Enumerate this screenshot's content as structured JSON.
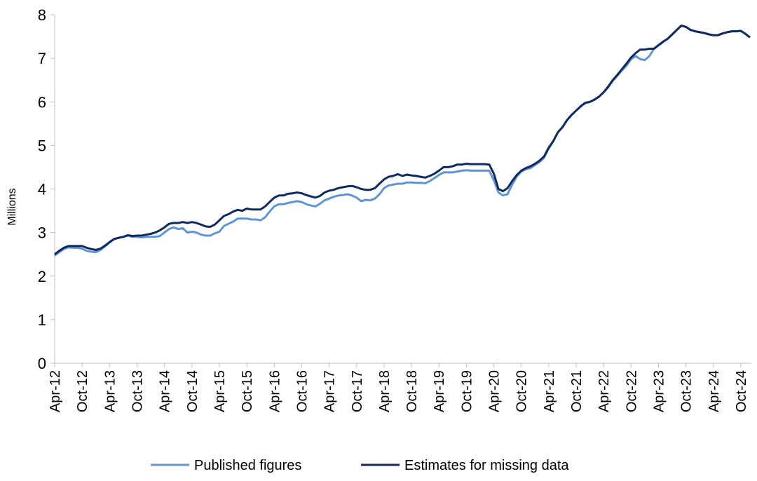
{
  "chart_data": {
    "type": "line",
    "y_label": "Millions",
    "categories": [
      "Apr-12",
      null,
      null,
      null,
      null,
      null,
      "Oct-12",
      null,
      null,
      null,
      null,
      null,
      "Apr-13",
      null,
      null,
      null,
      null,
      null,
      "Oct-13",
      null,
      null,
      null,
      null,
      null,
      "Apr-14",
      null,
      null,
      null,
      null,
      null,
      "Oct-14",
      null,
      null,
      null,
      null,
      null,
      "Apr-15",
      null,
      null,
      null,
      null,
      null,
      "Oct-15",
      null,
      null,
      null,
      null,
      null,
      "Apr-16",
      null,
      null,
      null,
      null,
      null,
      "Oct-16",
      null,
      null,
      null,
      null,
      null,
      "Apr-17",
      null,
      null,
      null,
      null,
      null,
      "Oct-17",
      null,
      null,
      null,
      null,
      null,
      "Apr-18",
      null,
      null,
      null,
      null,
      null,
      "Oct-18",
      null,
      null,
      null,
      null,
      null,
      "Apr-19",
      null,
      null,
      null,
      null,
      null,
      "Oct-19",
      null,
      null,
      null,
      null,
      null,
      "Apr-20",
      null,
      null,
      null,
      null,
      null,
      "Oct-20",
      null,
      null,
      null,
      null,
      null,
      "Apr-21",
      null,
      null,
      null,
      null,
      null,
      "Oct-21",
      null,
      null,
      null,
      null,
      null,
      "Apr-22",
      null,
      null,
      null,
      null,
      null,
      "Oct-22",
      null,
      null,
      null,
      null,
      null,
      "Apr-23",
      null,
      null,
      null,
      null,
      null,
      "Oct-23",
      null,
      null,
      null,
      null,
      null,
      "Apr-24",
      null,
      null,
      null,
      null,
      null,
      "Oct-24",
      null,
      null
    ],
    "series": [
      {
        "name": "Published figures",
        "color": "#5f95d3",
        "values": [
          2.47,
          2.55,
          2.62,
          2.66,
          2.65,
          2.65,
          2.63,
          2.58,
          2.56,
          2.55,
          2.6,
          2.68,
          2.77,
          2.85,
          2.88,
          2.9,
          2.93,
          2.9,
          2.9,
          2.89,
          2.9,
          2.9,
          2.9,
          2.92,
          3.0,
          3.08,
          3.12,
          3.08,
          3.1,
          3.0,
          3.02,
          3.0,
          2.95,
          2.93,
          2.93,
          2.98,
          3.02,
          3.15,
          3.2,
          3.25,
          3.32,
          3.32,
          3.32,
          3.3,
          3.3,
          3.28,
          3.35,
          3.48,
          3.6,
          3.65,
          3.65,
          3.68,
          3.7,
          3.72,
          3.7,
          3.65,
          3.62,
          3.6,
          3.66,
          3.74,
          3.78,
          3.82,
          3.85,
          3.86,
          3.88,
          3.85,
          3.8,
          3.72,
          3.75,
          3.74,
          3.78,
          3.88,
          4.02,
          4.08,
          4.1,
          4.12,
          4.12,
          4.15,
          4.15,
          4.14,
          4.14,
          4.13,
          4.18,
          4.25,
          4.32,
          4.38,
          4.38,
          4.38,
          4.4,
          4.42,
          4.43,
          4.42,
          4.42,
          4.42,
          4.42,
          4.42,
          4.2,
          3.92,
          3.85,
          3.88,
          4.1,
          4.28,
          4.4,
          4.45,
          4.48,
          4.55,
          4.62,
          4.72,
          4.93,
          5.1,
          5.3,
          5.42,
          5.58,
          5.7,
          5.8,
          5.9,
          5.97,
          6.0,
          6.05,
          6.12,
          6.22,
          6.33,
          6.48,
          6.6,
          6.72,
          6.83,
          6.98,
          7.05,
          6.98,
          6.96,
          7.05,
          7.22,
          7.3,
          7.38,
          7.45,
          7.55,
          7.65,
          7.75,
          7.72,
          7.65,
          7.62,
          7.6,
          7.58,
          7.55,
          7.53,
          7.53,
          7.57,
          7.6,
          7.62,
          7.62,
          7.63,
          7.56,
          7.48
        ]
      },
      {
        "name": "Estimates for missing data",
        "color": "#0e2a5e",
        "values": [
          2.5,
          2.58,
          2.65,
          2.69,
          2.69,
          2.69,
          2.69,
          2.65,
          2.62,
          2.6,
          2.63,
          2.7,
          2.78,
          2.85,
          2.88,
          2.9,
          2.94,
          2.92,
          2.93,
          2.93,
          2.95,
          2.97,
          3.0,
          3.05,
          3.12,
          3.2,
          3.22,
          3.22,
          3.24,
          3.22,
          3.24,
          3.22,
          3.18,
          3.14,
          3.13,
          3.18,
          3.28,
          3.38,
          3.42,
          3.48,
          3.52,
          3.5,
          3.55,
          3.53,
          3.53,
          3.53,
          3.6,
          3.7,
          3.8,
          3.85,
          3.85,
          3.89,
          3.9,
          3.92,
          3.9,
          3.86,
          3.83,
          3.8,
          3.84,
          3.92,
          3.96,
          3.98,
          4.02,
          4.04,
          4.06,
          4.07,
          4.04,
          4.0,
          3.98,
          3.98,
          4.02,
          4.12,
          4.22,
          4.28,
          4.3,
          4.34,
          4.3,
          4.33,
          4.31,
          4.3,
          4.28,
          4.26,
          4.3,
          4.35,
          4.42,
          4.5,
          4.5,
          4.52,
          4.56,
          4.56,
          4.58,
          4.57,
          4.57,
          4.57,
          4.57,
          4.56,
          4.35,
          4.0,
          3.95,
          4.02,
          4.18,
          4.32,
          4.42,
          4.48,
          4.52,
          4.58,
          4.65,
          4.75,
          4.95,
          5.1,
          5.3,
          5.42,
          5.58,
          5.7,
          5.8,
          5.9,
          5.98,
          6.0,
          6.05,
          6.12,
          6.22,
          6.35,
          6.5,
          6.62,
          6.75,
          6.88,
          7.02,
          7.12,
          7.2,
          7.2,
          7.22,
          7.22,
          7.3,
          7.38,
          7.45,
          7.55,
          7.65,
          7.75,
          7.72,
          7.65,
          7.62,
          7.6,
          7.58,
          7.55,
          7.53,
          7.53,
          7.57,
          7.6,
          7.62,
          7.62,
          7.63,
          7.56,
          7.48
        ]
      }
    ],
    "ylim": [
      0,
      8
    ],
    "yticks": [
      0,
      1,
      2,
      3,
      4,
      5,
      6,
      7,
      8
    ],
    "legend": "bottom"
  }
}
